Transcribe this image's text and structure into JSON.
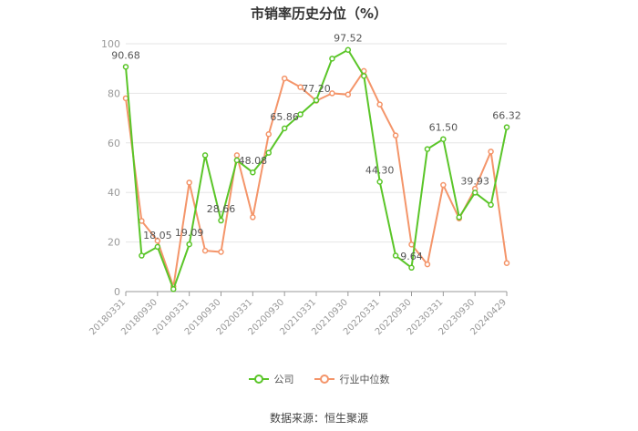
{
  "title": "市销率历史分位（%）",
  "source": "数据来源：恒生聚源",
  "legend": {
    "company": "公司",
    "industry": "行业中位数"
  },
  "colors": {
    "company": "#5ac528",
    "industry": "#f4956a",
    "axis": "#999999",
    "grid": "#e6e6e6"
  },
  "chart_data": {
    "type": "line",
    "title": "市销率历史分位（%）",
    "ylim": [
      0,
      100
    ],
    "yticks": [
      0,
      20,
      40,
      60,
      80,
      100
    ],
    "grid": true,
    "legend_position": "bottom",
    "x_tick_labels": [
      "20180331",
      "20180930",
      "20190331",
      "20190930",
      "20200331",
      "20200930",
      "20210331",
      "20210930",
      "20220331",
      "20220930",
      "20230331",
      "20230930",
      "20240429"
    ],
    "x": [
      "20180331",
      "20180630",
      "20180930",
      "20181231",
      "20190331",
      "20190630",
      "20190930",
      "20191231",
      "20200331",
      "20200630",
      "20200930",
      "20201231",
      "20210331",
      "20210630",
      "20210930",
      "20211231",
      "20220331",
      "20220630",
      "20220930",
      "20221231",
      "20230331",
      "20230630",
      "20230930",
      "20231231",
      "20240429"
    ],
    "series": [
      {
        "name": "公司",
        "values": [
          90.68,
          14.5,
          18.05,
          1.0,
          19.09,
          55.0,
          28.66,
          53.0,
          48.08,
          56.0,
          65.86,
          71.5,
          77.2,
          94.0,
          97.52,
          87.0,
          44.3,
          14.5,
          9.64,
          57.5,
          61.5,
          30.0,
          39.93,
          35.0,
          66.32
        ],
        "labels": {
          "0": "90.68",
          "2": "18.05",
          "4": "19.09",
          "6": "28.66",
          "8": "48.08",
          "10": "65.86",
          "12": "77.20",
          "14": "97.52",
          "16": "44.30",
          "18": "9.64",
          "20": "61.50",
          "22": "39.93",
          "24": "66.32"
        }
      },
      {
        "name": "行业中位数",
        "values": [
          78.0,
          28.5,
          20.5,
          2.0,
          44.0,
          16.5,
          16.0,
          55.0,
          30.0,
          63.5,
          86.0,
          82.5,
          77.0,
          80.0,
          79.5,
          89.0,
          75.5,
          63.0,
          19.0,
          11.0,
          43.0,
          29.5,
          41.5,
          56.5,
          11.5
        ]
      }
    ]
  }
}
